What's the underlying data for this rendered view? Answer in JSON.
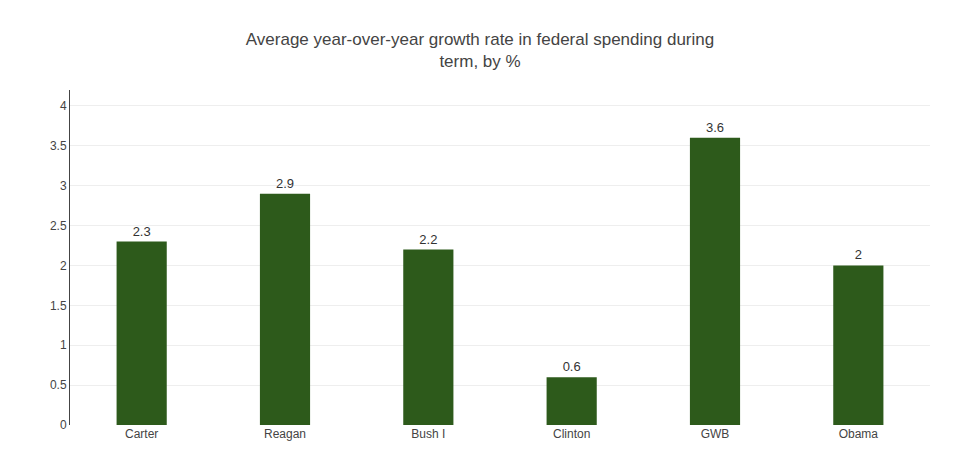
{
  "chart_data": {
    "type": "bar",
    "title": "Average year-over-year growth rate in federal spending during\nterm, by %",
    "categories": [
      "Carter",
      "Reagan",
      "Bush I",
      "Clinton",
      "GWB",
      "Obama"
    ],
    "values": [
      2.3,
      2.9,
      2.2,
      0.6,
      3.6,
      2.0
    ],
    "value_labels": [
      "2.3",
      "2.9",
      "2.2",
      "0.6",
      "3.6",
      "2"
    ],
    "color": "#2d5a1b",
    "ylim": [
      0,
      4.2
    ],
    "yticks": [
      0,
      0.5,
      1,
      1.5,
      2,
      2.5,
      3,
      3.5,
      4
    ],
    "grid": true,
    "data_labels": true
  }
}
